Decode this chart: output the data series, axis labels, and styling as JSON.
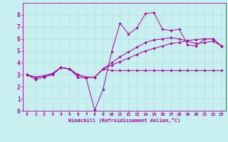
{
  "background_color": "#c8f0f0",
  "grid_color": "#b8dede",
  "line_color": "#aa00aa",
  "marker_color": "#aa00aa",
  "xlabel": "Windchill (Refroidissement éolien,°C)",
  "xlim": [
    -0.5,
    23.5
  ],
  "ylim": [
    0,
    9
  ],
  "xtick_labels": [
    "0",
    "1",
    "2",
    "3",
    "4",
    "5",
    "6",
    "7",
    "8",
    "9",
    "10",
    "11",
    "12",
    "13",
    "14",
    "15",
    "16",
    "17",
    "18",
    "19",
    "20",
    "21",
    "22",
    "23"
  ],
  "xtick_vals": [
    0,
    1,
    2,
    3,
    4,
    5,
    6,
    7,
    8,
    9,
    10,
    11,
    12,
    13,
    14,
    15,
    16,
    17,
    18,
    19,
    20,
    21,
    22,
    23
  ],
  "yticks": [
    0,
    1,
    2,
    3,
    4,
    5,
    6,
    7,
    8
  ],
  "series": [
    [
      3.0,
      2.6,
      2.8,
      3.0,
      3.6,
      3.5,
      2.8,
      2.7,
      0.05,
      1.8,
      4.9,
      7.3,
      6.4,
      6.9,
      8.1,
      8.2,
      6.8,
      6.7,
      6.8,
      5.5,
      5.4,
      6.0,
      6.0,
      5.4
    ],
    [
      3.0,
      2.8,
      2.9,
      3.1,
      3.6,
      3.5,
      3.0,
      2.8,
      2.8,
      3.5,
      3.35,
      3.35,
      3.35,
      3.35,
      3.35,
      3.35,
      3.35,
      3.35,
      3.35,
      3.35,
      3.35,
      3.35,
      3.35,
      3.35
    ],
    [
      3.0,
      2.8,
      2.9,
      3.1,
      3.6,
      3.5,
      3.0,
      2.8,
      2.8,
      3.5,
      3.8,
      4.1,
      4.4,
      4.7,
      5.0,
      5.2,
      5.4,
      5.6,
      5.7,
      5.85,
      5.95,
      6.0,
      6.0,
      5.4
    ],
    [
      3.0,
      2.8,
      2.9,
      3.1,
      3.6,
      3.5,
      3.0,
      2.8,
      2.8,
      3.5,
      4.0,
      4.5,
      4.9,
      5.3,
      5.7,
      5.9,
      6.0,
      6.1,
      6.0,
      5.8,
      5.6,
      5.7,
      5.8,
      5.4
    ]
  ],
  "figsize": [
    3.2,
    2.0
  ],
  "dpi": 100
}
